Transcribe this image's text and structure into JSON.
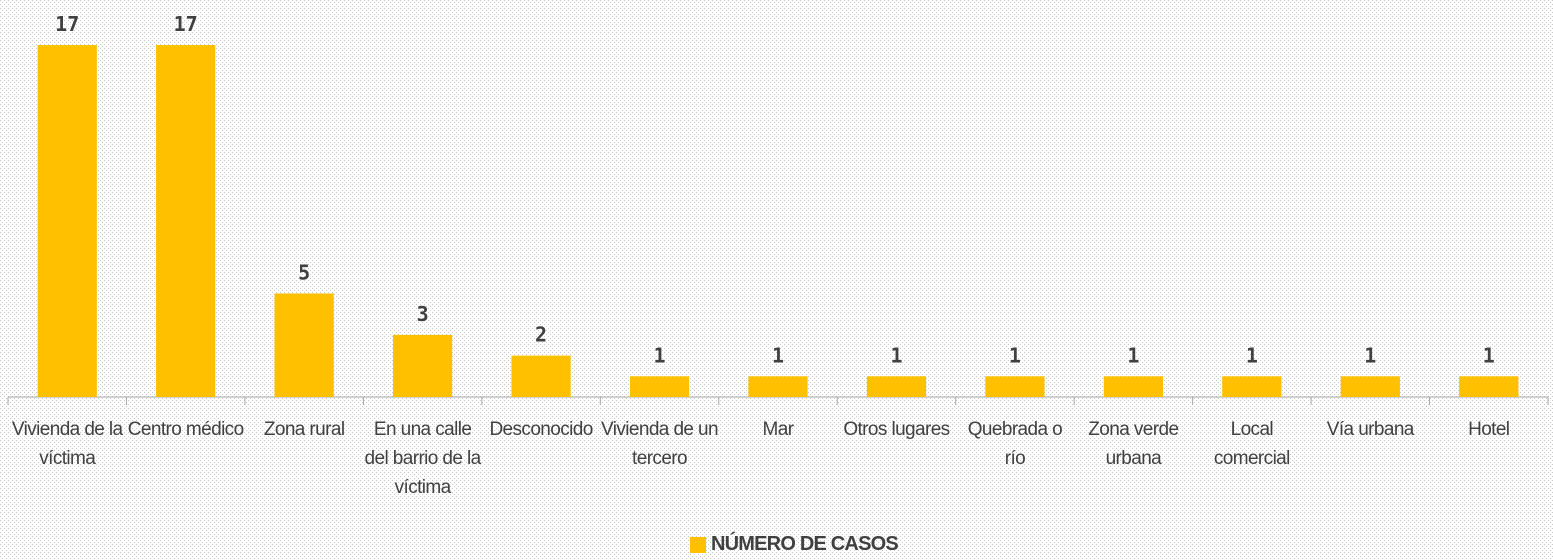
{
  "chart_data": {
    "type": "bar",
    "categories": [
      "Vivienda de la víctima",
      "Centro médico",
      "Zona rural",
      "En una calle del barrio de la víctima",
      "Desconocido",
      "Vivienda de un tercero",
      "Mar",
      "Otros lugares",
      "Quebrada o río",
      "Zona verde urbana",
      "Local comercial",
      "Vía urbana",
      "Hotel"
    ],
    "series": [
      {
        "name": "NÚMERO DE CASOS",
        "color": "#ffc000",
        "values": [
          17,
          17,
          5,
          3,
          2,
          1,
          1,
          1,
          1,
          1,
          1,
          1,
          1
        ]
      }
    ],
    "ylim": [
      0,
      17
    ],
    "legend": "bottom"
  }
}
